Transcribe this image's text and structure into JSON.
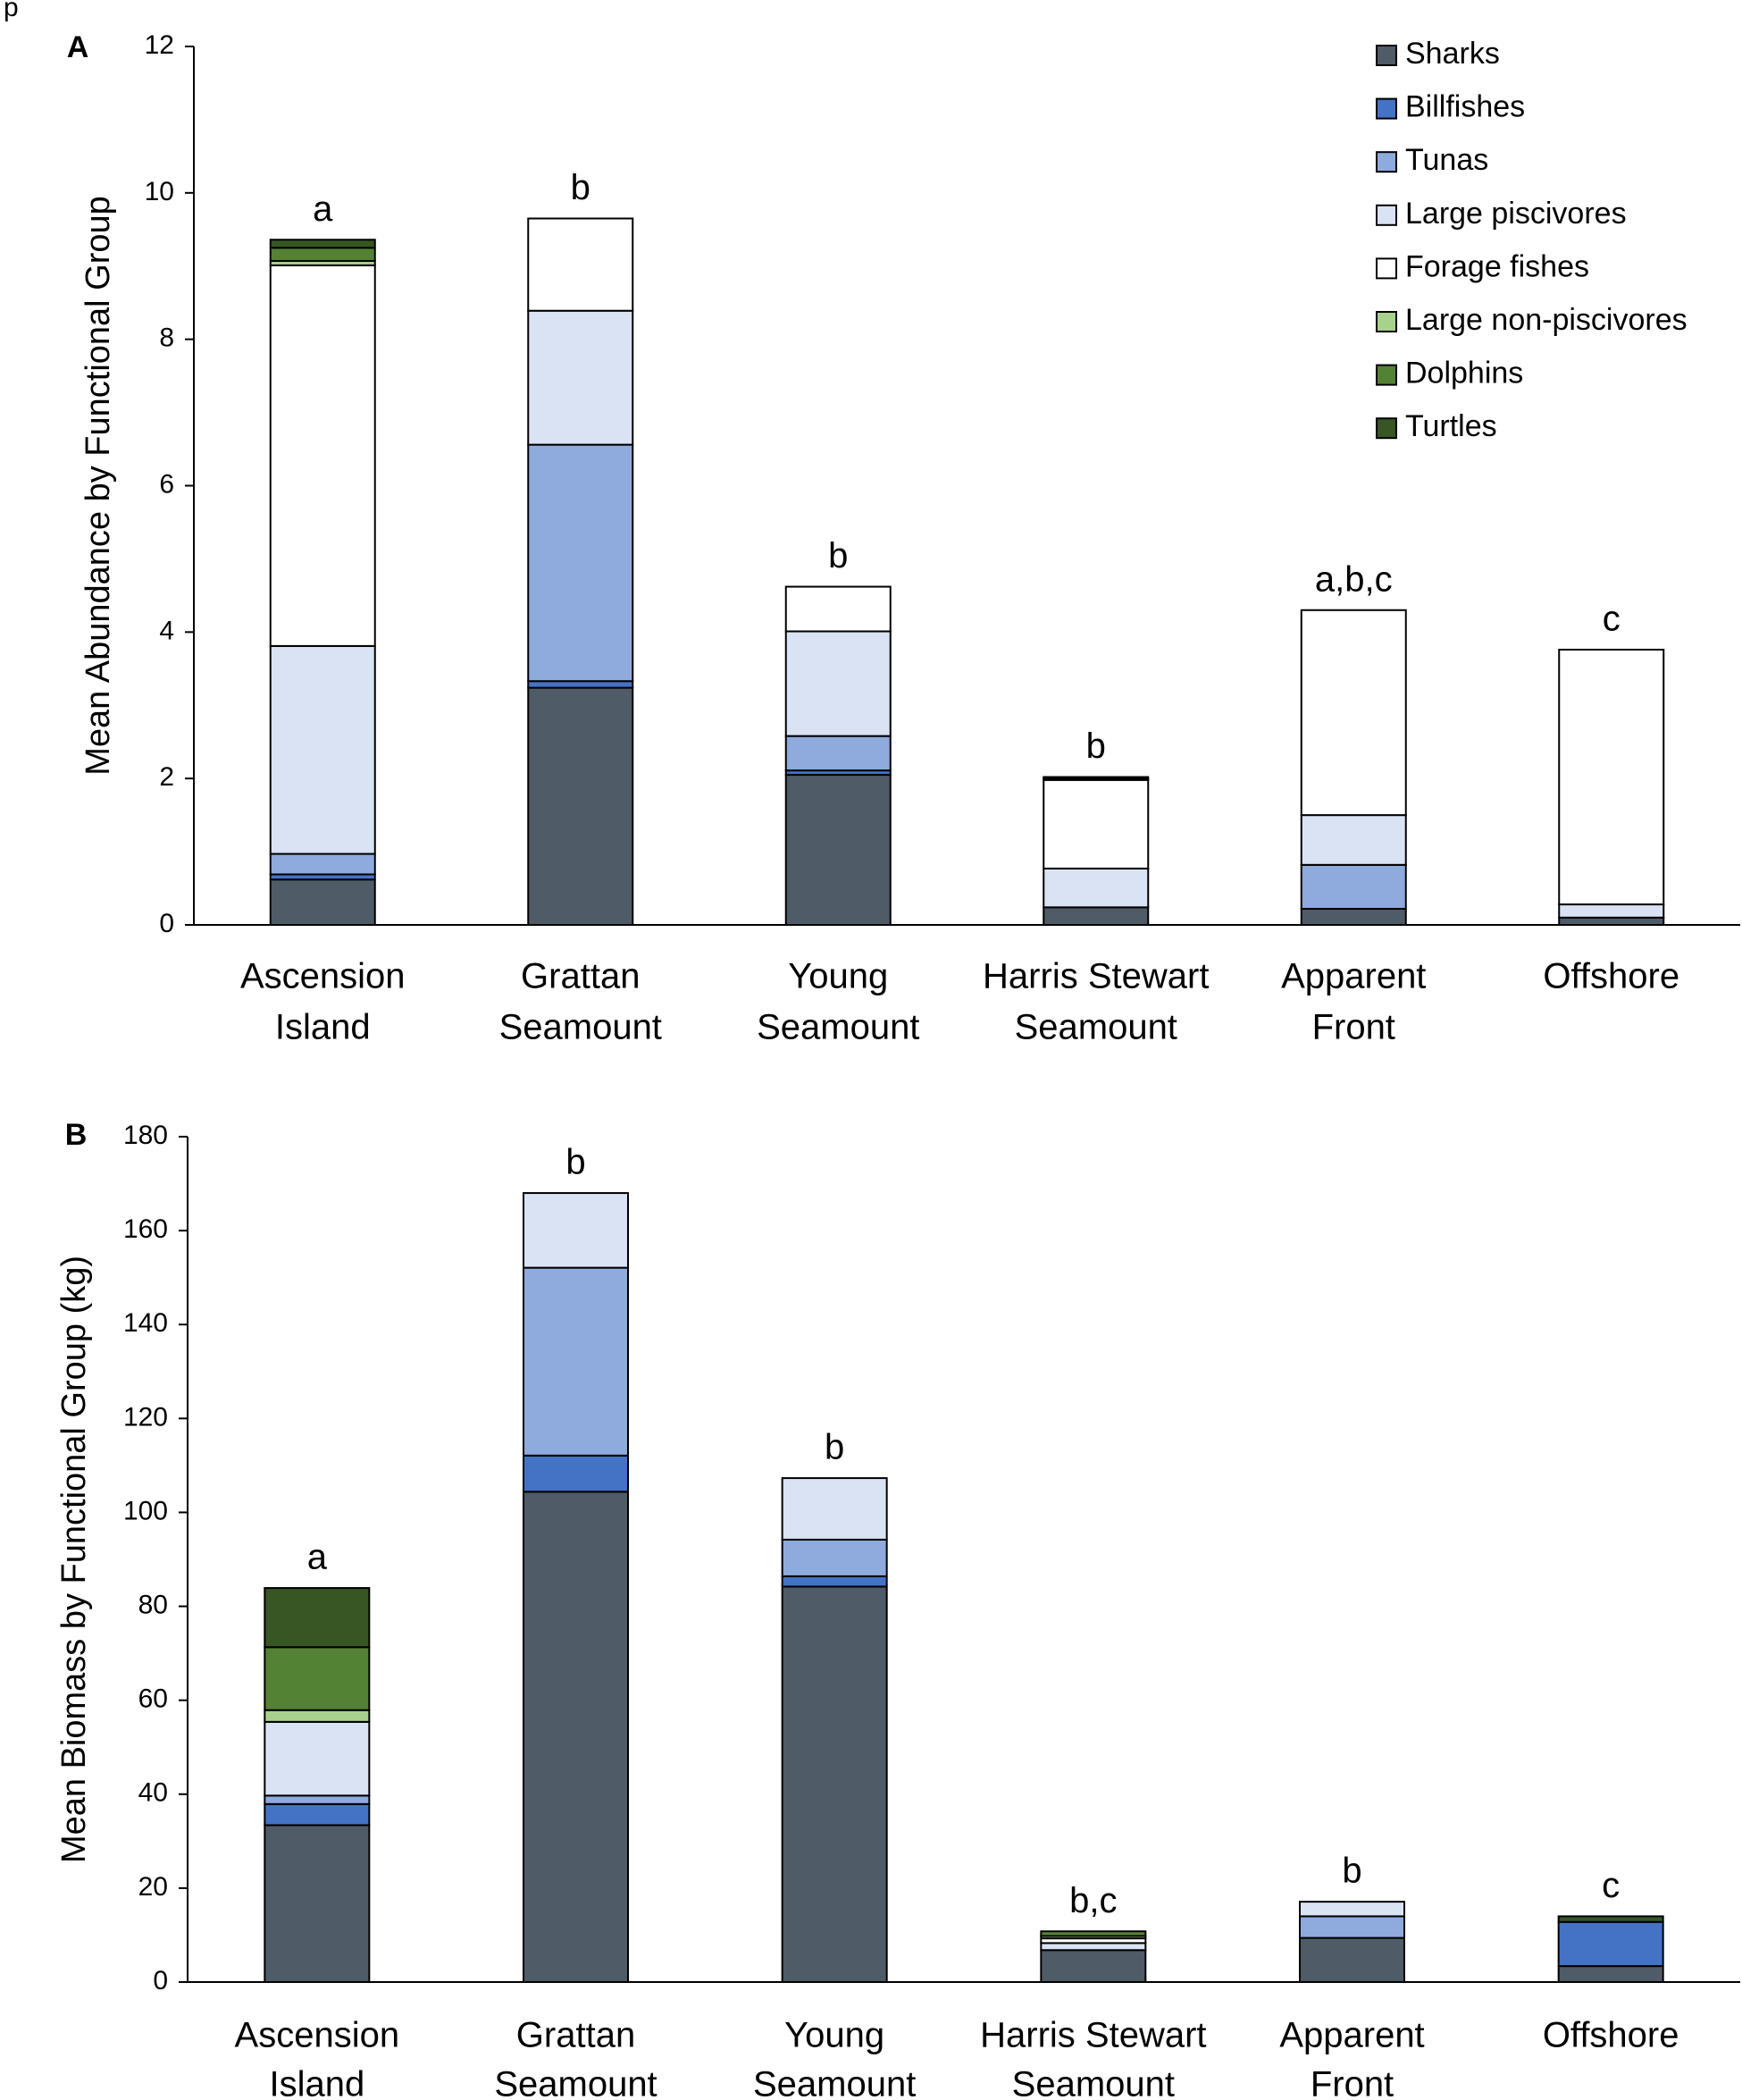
{
  "page_label": "p",
  "chart_data": [
    {
      "type": "bar",
      "stacked": true,
      "panel": "A",
      "legend": "top-right",
      "ylabel": "Mean Abundance by Functional Group",
      "categories": [
        [
          "Ascension",
          "Island"
        ],
        [
          "Grattan",
          "Seamount"
        ],
        [
          "Young",
          "Seamount"
        ],
        [
          "Harris Stewart",
          "Seamount"
        ],
        [
          "Apparent",
          "Front"
        ],
        [
          "Offshore"
        ]
      ],
      "annotations": [
        "a",
        "b",
        "b",
        "b",
        "a,b,c",
        "c"
      ],
      "ylim": [
        0,
        12
      ],
      "yticks": [
        0,
        2,
        4,
        6,
        8,
        10,
        12
      ],
      "series": [
        {
          "name": "Sharks",
          "color": "#4f5b66",
          "values": [
            0.62,
            3.24,
            2.05,
            0.24,
            0.22,
            0.1
          ]
        },
        {
          "name": "Billfishes",
          "color": "#4472c4",
          "values": [
            0.07,
            0.09,
            0.06,
            0,
            0,
            0
          ]
        },
        {
          "name": "Tunas",
          "color": "#8faadc",
          "values": [
            0.28,
            3.23,
            0.47,
            0,
            0.6,
            0
          ]
        },
        {
          "name": "Large piscivores",
          "color": "#dae3f3",
          "values": [
            2.84,
            1.83,
            1.43,
            0.53,
            0.68,
            0.18
          ]
        },
        {
          "name": "Forage fishes",
          "color": "#ffffff",
          "values": [
            5.2,
            1.26,
            0.61,
            1.21,
            2.8,
            3.48
          ]
        },
        {
          "name": "Large non-piscivores",
          "color": "#a9d18e",
          "values": [
            0.06,
            0,
            0,
            0.02,
            0,
            0
          ]
        },
        {
          "name": "Dolphins",
          "color": "#548235",
          "values": [
            0.18,
            0,
            0,
            0.02,
            0,
            0
          ]
        },
        {
          "name": "Turtles",
          "color": "#375623",
          "values": [
            0.11,
            0,
            0,
            0,
            0,
            0
          ]
        }
      ]
    },
    {
      "type": "bar",
      "stacked": true,
      "panel": "B",
      "ylabel": "Mean Biomass by Functional Group (kg)",
      "categories": [
        [
          "Ascension",
          "Island"
        ],
        [
          "Grattan",
          "Seamount"
        ],
        [
          "Young",
          "Seamount"
        ],
        [
          "Harris Stewart",
          "Seamount"
        ],
        [
          "Apparent",
          "Front"
        ],
        [
          "Offshore"
        ]
      ],
      "annotations": [
        "a",
        "b",
        "b",
        "b,c",
        "b",
        "c"
      ],
      "ylim": [
        0,
        180
      ],
      "yticks": [
        0,
        20,
        40,
        60,
        80,
        100,
        120,
        140,
        160,
        180
      ],
      "series": [
        {
          "color": "#4f5b66",
          "values": [
            33.4,
            104.4,
            84.2,
            6.8,
            9.4,
            3.4
          ]
        },
        {
          "color": "#4472c4",
          "values": [
            4.5,
            7.7,
            2.2,
            0,
            0,
            9.4
          ]
        },
        {
          "color": "#8faadc",
          "values": [
            1.8,
            40,
            7.8,
            0,
            4.6,
            0
          ]
        },
        {
          "color": "#dae3f3",
          "values": [
            15.7,
            15.9,
            13.1,
            1.5,
            3.1,
            0
          ]
        },
        {
          "color": "#ffffff",
          "values": [
            0,
            0,
            0,
            1.0,
            0,
            0
          ]
        },
        {
          "color": "#a9d18e",
          "values": [
            2.5,
            0,
            0,
            0.5,
            0,
            0
          ]
        },
        {
          "color": "#548235",
          "values": [
            13.4,
            0,
            0,
            1.0,
            0,
            0
          ]
        },
        {
          "color": "#375623",
          "values": [
            12.6,
            0,
            0,
            0,
            0,
            1.2
          ]
        }
      ]
    }
  ]
}
